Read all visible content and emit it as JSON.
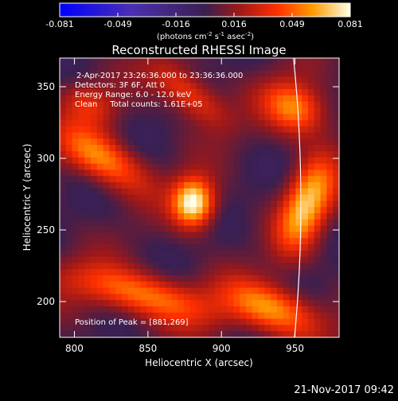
{
  "chart_data": {
    "type": "heatmap",
    "title": "Reconstructed RHESSI Image",
    "xlabel": "Heliocentric X (arcsec)",
    "ylabel": "Heliocentric Y (arcsec)",
    "xlim": [
      790,
      980
    ],
    "ylim": [
      175,
      370
    ],
    "x_ticks": [
      800,
      850,
      900,
      950
    ],
    "y_ticks": [
      200,
      250,
      300,
      350
    ],
    "colorbar": {
      "range": [
        -0.081,
        0.081
      ],
      "ticks": [
        "-0.081",
        "-0.049",
        "-0.016",
        "0.016",
        "0.049",
        "0.081"
      ],
      "units_base": "(photons cm",
      "units_exp1": "-2",
      "units_mid1": " s",
      "units_exp2": "-1",
      "units_mid2": " asec",
      "units_exp3": "-2",
      "units_end": ")"
    },
    "annotations": {
      "time_range": "2-Apr-2017 23:26:36.000 to 23:36:36.000",
      "detectors": "Detectors: 3F 6F, Att 0",
      "energy_range": "Energy Range: 6.0 - 12.0 keV",
      "clean": "Clean     Total counts: 1.61E+05",
      "peak": "Position of Peak = [881,269]"
    },
    "peak": [
      881,
      269
    ],
    "sources": [
      {
        "x": 881,
        "y": 269,
        "amp": 0.081,
        "sx": 10,
        "sy": 12,
        "angle": 0
      },
      {
        "x": 958,
        "y": 268,
        "amp": 0.064,
        "sx": 11,
        "sy": 24,
        "angle": -0.35
      },
      {
        "x": 950,
        "y": 335,
        "amp": 0.055,
        "sx": 16,
        "sy": 12,
        "angle": -0.6
      },
      {
        "x": 818,
        "y": 300,
        "amp": 0.052,
        "sx": 24,
        "sy": 11,
        "angle": -0.55
      },
      {
        "x": 845,
        "y": 205,
        "amp": 0.05,
        "sx": 38,
        "sy": 11,
        "angle": -0.25
      },
      {
        "x": 935,
        "y": 195,
        "amp": 0.055,
        "sx": 24,
        "sy": 11,
        "angle": -0.35
      },
      {
        "x": 878,
        "y": 345,
        "amp": 0.04,
        "sx": 22,
        "sy": 9,
        "angle": -0.7
      },
      {
        "x": 810,
        "y": 338,
        "amp": 0.028,
        "sx": 14,
        "sy": 10,
        "angle": -0.5
      }
    ],
    "grid": false
  },
  "footer": {
    "timestamp": "21-Nov-2017 09:42"
  }
}
